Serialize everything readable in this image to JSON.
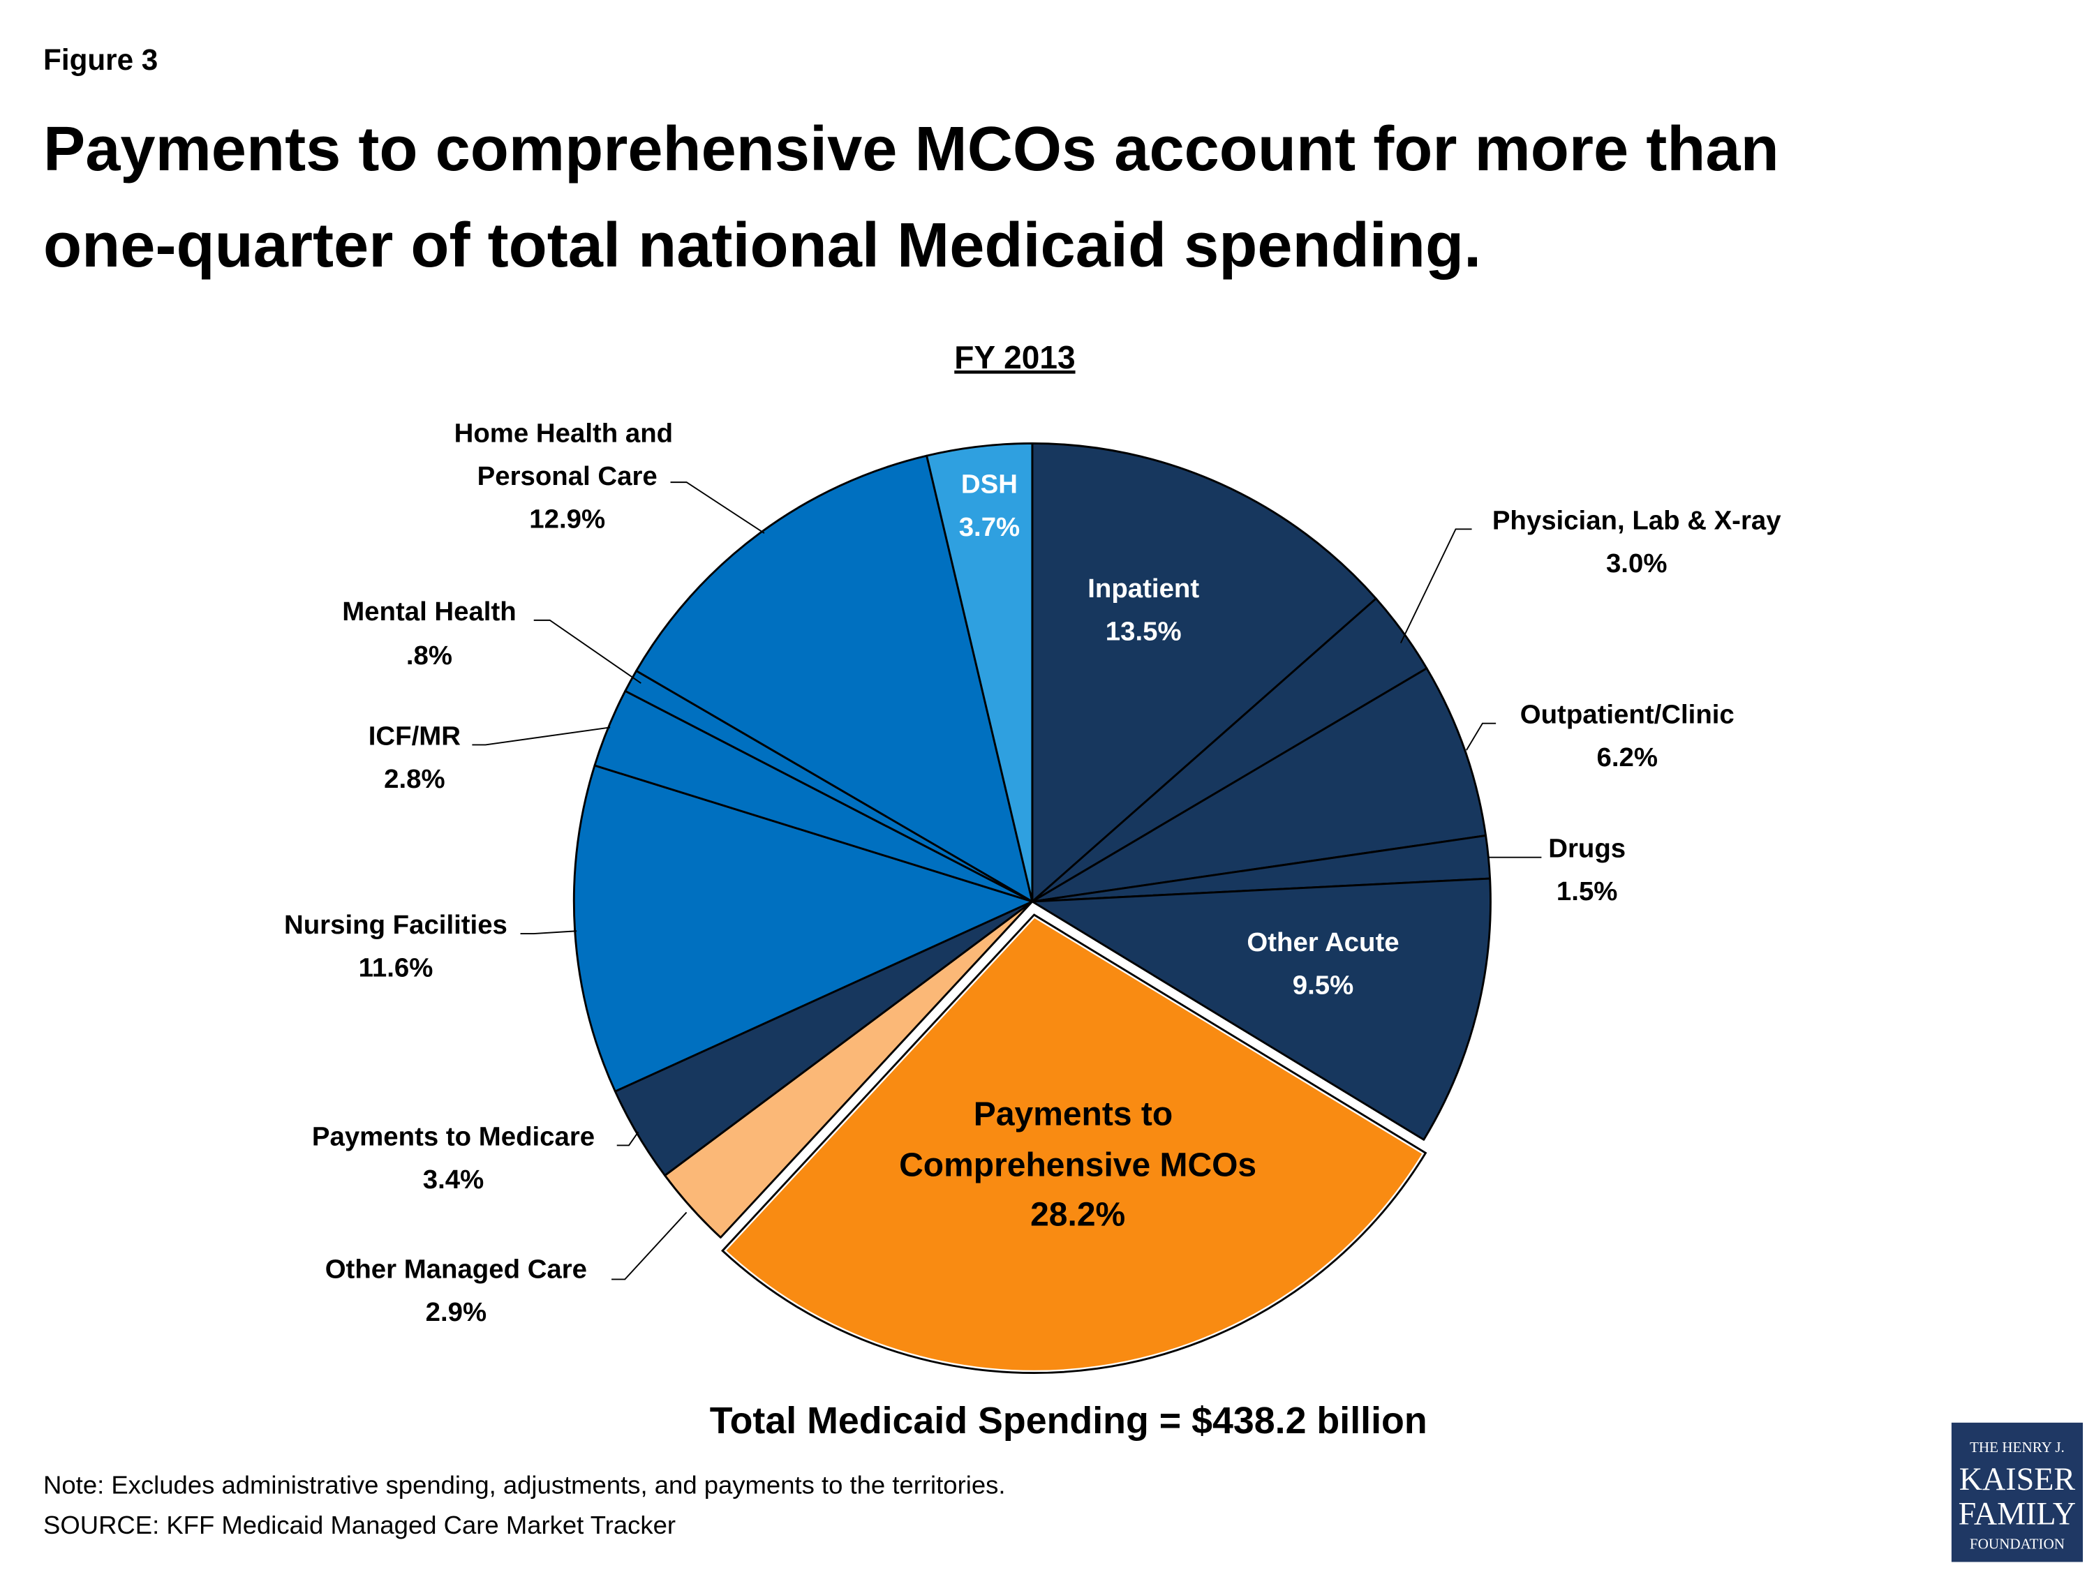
{
  "header": {
    "figure": "Figure 3",
    "title": "Payments to comprehensive MCOs account for more than one-quarter of total national Medicaid spending."
  },
  "chart_data": {
    "type": "pie",
    "title": "FY 2013",
    "categories": [
      "Inpatient",
      "Physician, Lab & X-ray",
      "Outpatient/Clinic",
      "Drugs",
      "Other Acute",
      "Payments to Comprehensive MCOs",
      "Other Managed Care",
      "Payments to Medicare",
      "Nursing Facilities",
      "ICF/MR",
      "Mental Health",
      "Home Health and Personal Care",
      "DSH"
    ],
    "values": [
      13.5,
      3.0,
      6.2,
      1.5,
      9.5,
      28.2,
      2.9,
      3.4,
      11.6,
      2.8,
      0.8,
      12.9,
      3.7
    ],
    "value_labels": [
      "13.5%",
      "3.0%",
      "6.2%",
      "1.5%",
      "9.5%",
      "28.2%",
      "2.9%",
      "3.4%",
      "11.6%",
      "2.8%",
      ".8%",
      "12.9%",
      "3.7%"
    ],
    "colors": [
      "#17375e",
      "#17375e",
      "#17375e",
      "#17375e",
      "#17375e",
      "#f98b12",
      "#fbb877",
      "#17375e",
      "#0070c0",
      "#0070c0",
      "#0070c0",
      "#0070c0",
      "#2fa0e0"
    ],
    "exploded": [
      5
    ],
    "total": "Total Medicaid Spending = $438.2 billion"
  },
  "footer": {
    "note": "Note: Excludes administrative spending, adjustments, and payments to the territories.",
    "source": "SOURCE: KFF Medicaid Managed Care Market Tracker",
    "logo": [
      "THE HENRY J.",
      "KAISER",
      "FAMILY",
      "FOUNDATION"
    ]
  }
}
